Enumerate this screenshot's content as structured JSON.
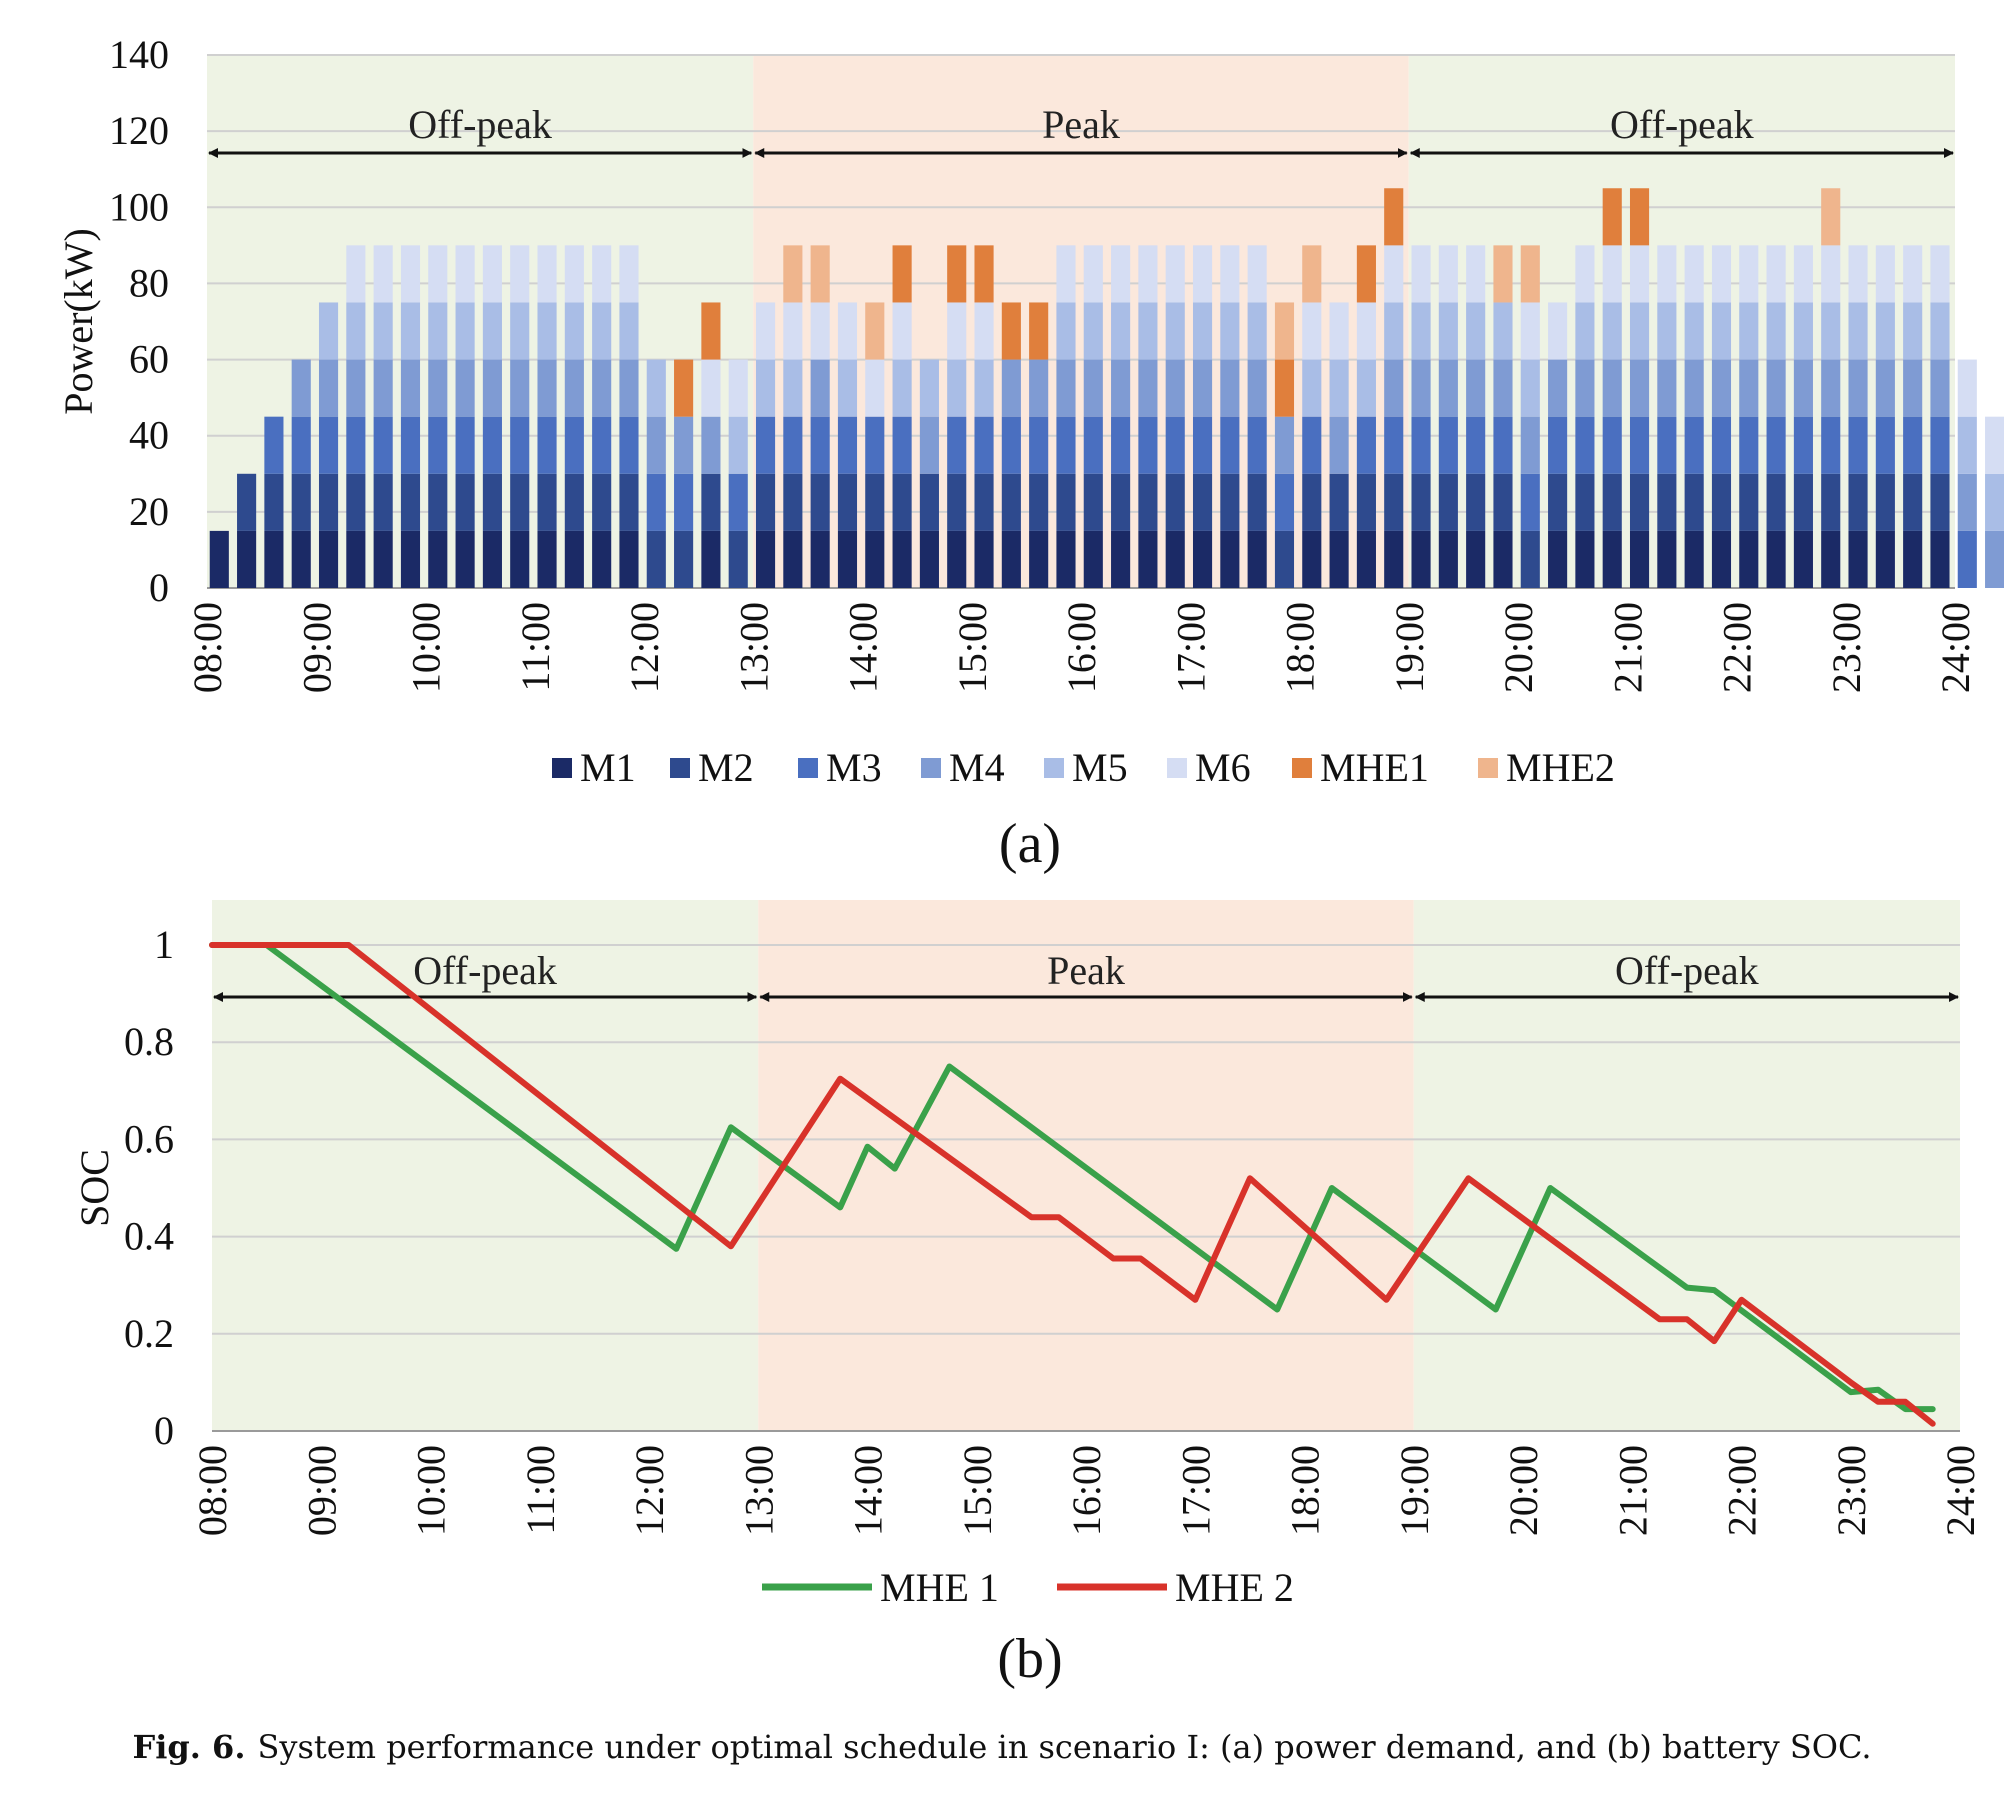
{
  "chart_data": [
    {
      "panel_label": "(a)",
      "type": "bar",
      "stacked": true,
      "ylabel": "Power(kW)",
      "ylim": [
        0,
        140
      ],
      "yticks": [
        "0",
        "20",
        "40",
        "60",
        "80",
        "100",
        "120",
        "140"
      ],
      "xticks": [
        "08:00",
        "09:00",
        "10:00",
        "11:00",
        "12:00",
        "13:00",
        "14:00",
        "15:00",
        "16:00",
        "17:00",
        "18:00",
        "19:00",
        "20:00",
        "21:00",
        "22:00",
        "23:00",
        "24:00"
      ],
      "periods": [
        {
          "label": "Off-peak",
          "start": "08:00",
          "end": "13:00",
          "color": "#eef3e4"
        },
        {
          "label": "Peak",
          "start": "13:00",
          "end": "19:00",
          "color": "#fbe8dc"
        },
        {
          "label": "Off-peak",
          "start": "19:00",
          "end": "24:00",
          "color": "#eef3e4"
        }
      ],
      "series": [
        {
          "name": "M1",
          "color": "#1b2a66"
        },
        {
          "name": "M2",
          "color": "#2e4a8e"
        },
        {
          "name": "M3",
          "color": "#4a6fc0"
        },
        {
          "name": "M4",
          "color": "#7f9bd3"
        },
        {
          "name": "M5",
          "color": "#a9bde6"
        },
        {
          "name": "M6",
          "color": "#d5ddf3"
        },
        {
          "name": "MHE1",
          "color": "#e07f3c"
        },
        {
          "name": "MHE2",
          "color": "#efb58d"
        }
      ],
      "bar_interval_minutes": 15,
      "bars": [
        [
          1,
          0,
          0,
          0,
          0,
          0,
          0,
          0
        ],
        [
          1,
          1,
          0,
          0,
          0,
          0,
          0,
          0
        ],
        [
          1,
          1,
          1,
          0,
          0,
          0,
          0,
          0
        ],
        [
          1,
          1,
          1,
          1,
          0,
          0,
          0,
          0
        ],
        [
          1,
          1,
          1,
          1,
          1,
          0,
          0,
          0
        ],
        [
          1,
          1,
          1,
          1,
          1,
          1,
          0,
          0
        ],
        [
          1,
          1,
          1,
          1,
          1,
          1,
          0,
          0
        ],
        [
          1,
          1,
          1,
          1,
          1,
          1,
          0,
          0
        ],
        [
          1,
          1,
          1,
          1,
          1,
          1,
          0,
          0
        ],
        [
          1,
          1,
          1,
          1,
          1,
          1,
          0,
          0
        ],
        [
          1,
          1,
          1,
          1,
          1,
          1,
          0,
          0
        ],
        [
          1,
          1,
          1,
          1,
          1,
          1,
          0,
          0
        ],
        [
          1,
          1,
          1,
          1,
          1,
          1,
          0,
          0
        ],
        [
          1,
          1,
          1,
          1,
          1,
          1,
          0,
          0
        ],
        [
          1,
          1,
          1,
          1,
          1,
          1,
          0,
          0
        ],
        [
          1,
          1,
          1,
          1,
          1,
          1,
          0,
          0
        ],
        [
          0,
          1,
          1,
          1,
          1,
          0,
          0,
          0
        ],
        [
          0,
          1,
          1,
          1,
          0,
          0,
          1,
          0
        ],
        [
          1,
          1,
          0,
          1,
          0,
          1,
          1,
          0
        ],
        [
          0,
          1,
          1,
          0,
          1,
          1,
          0,
          0
        ],
        [
          1,
          1,
          1,
          0,
          1,
          1,
          0,
          0
        ],
        [
          1,
          1,
          1,
          0,
          1,
          1,
          0,
          1
        ],
        [
          1,
          1,
          1,
          1,
          0,
          1,
          0,
          1
        ],
        [
          1,
          1,
          1,
          0,
          1,
          1,
          0,
          0
        ],
        [
          1,
          1,
          1,
          0,
          0,
          1,
          0,
          1
        ],
        [
          1,
          1,
          1,
          0,
          1,
          1,
          1,
          0
        ],
        [
          1,
          1,
          0,
          1,
          1,
          0,
          0,
          0
        ],
        [
          1,
          1,
          1,
          0,
          1,
          1,
          1,
          0
        ],
        [
          1,
          1,
          1,
          0,
          1,
          1,
          1,
          0
        ],
        [
          1,
          1,
          1,
          1,
          0,
          0,
          1,
          0
        ],
        [
          1,
          1,
          1,
          1,
          0,
          0,
          1,
          0
        ],
        [
          1,
          1,
          1,
          1,
          1,
          1,
          0,
          0
        ],
        [
          1,
          1,
          1,
          1,
          1,
          1,
          0,
          0
        ],
        [
          1,
          1,
          1,
          1,
          1,
          1,
          0,
          0
        ],
        [
          1,
          1,
          1,
          1,
          1,
          1,
          0,
          0
        ],
        [
          1,
          1,
          1,
          1,
          1,
          1,
          0,
          0
        ],
        [
          1,
          1,
          1,
          1,
          1,
          1,
          0,
          0
        ],
        [
          1,
          1,
          1,
          1,
          1,
          1,
          0,
          0
        ],
        [
          1,
          1,
          1,
          1,
          1,
          1,
          0,
          0
        ],
        [
          0,
          1,
          1,
          1,
          0,
          0,
          1,
          1
        ],
        [
          1,
          1,
          1,
          0,
          1,
          1,
          0,
          1
        ],
        [
          1,
          1,
          0,
          1,
          1,
          1,
          0,
          0
        ],
        [
          1,
          1,
          1,
          0,
          1,
          1,
          1,
          0
        ],
        [
          1,
          1,
          1,
          1,
          1,
          1,
          1,
          0
        ],
        [
          1,
          1,
          1,
          1,
          1,
          1,
          0,
          0
        ],
        [
          1,
          1,
          1,
          1,
          1,
          1,
          0,
          0
        ],
        [
          1,
          1,
          1,
          1,
          1,
          1,
          0,
          0
        ],
        [
          1,
          1,
          1,
          1,
          1,
          0,
          0,
          1
        ],
        [
          0,
          1,
          1,
          1,
          1,
          1,
          0,
          1
        ],
        [
          1,
          1,
          1,
          1,
          0,
          1,
          0,
          0
        ],
        [
          1,
          1,
          1,
          1,
          1,
          1,
          0,
          0
        ],
        [
          1,
          1,
          1,
          1,
          1,
          1,
          1,
          0
        ],
        [
          1,
          1,
          1,
          1,
          1,
          1,
          1,
          0
        ],
        [
          1,
          1,
          1,
          1,
          1,
          1,
          0,
          0
        ],
        [
          1,
          1,
          1,
          1,
          1,
          1,
          0,
          0
        ],
        [
          1,
          1,
          1,
          1,
          1,
          1,
          0,
          0
        ],
        [
          1,
          1,
          1,
          1,
          1,
          1,
          0,
          0
        ],
        [
          1,
          1,
          1,
          1,
          1,
          1,
          0,
          0
        ],
        [
          1,
          1,
          1,
          1,
          1,
          1,
          0,
          0
        ],
        [
          1,
          1,
          1,
          1,
          1,
          1,
          0,
          1
        ],
        [
          1,
          1,
          1,
          1,
          1,
          1,
          0,
          0
        ],
        [
          1,
          1,
          1,
          1,
          1,
          1,
          0,
          0
        ],
        [
          1,
          1,
          1,
          1,
          1,
          1,
          0,
          0
        ],
        [
          1,
          1,
          1,
          1,
          1,
          1,
          0,
          0
        ],
        [
          0,
          0,
          1,
          1,
          1,
          1,
          0,
          0
        ],
        [
          0,
          0,
          0,
          1,
          1,
          1,
          0,
          0
        ],
        [
          0,
          0,
          0,
          0,
          1,
          1,
          0,
          0
        ],
        [
          0,
          0,
          0,
          0,
          0,
          1,
          0,
          0
        ]
      ]
    },
    {
      "panel_label": "(b)",
      "type": "line",
      "ylabel": "SOC",
      "ylim": [
        0,
        1
      ],
      "yticks": [
        "0",
        "0.2",
        "0.4",
        "0.6",
        "0.8",
        "1"
      ],
      "xticks": [
        "08:00",
        "09:00",
        "10:00",
        "11:00",
        "12:00",
        "13:00",
        "14:00",
        "15:00",
        "16:00",
        "17:00",
        "18:00",
        "19:00",
        "20:00",
        "21:00",
        "22:00",
        "23:00",
        "24:00"
      ],
      "periods": [
        {
          "label": "Off-peak",
          "start": "08:00",
          "end": "13:00",
          "color": "#eef3e4"
        },
        {
          "label": "Peak",
          "start": "13:00",
          "end": "19:00",
          "color": "#fbe8dc"
        },
        {
          "label": "Off-peak",
          "start": "19:00",
          "end": "24:00",
          "color": "#eef3e4"
        }
      ],
      "series": [
        {
          "name": "MHE 1",
          "color": "#3aa14a",
          "points": [
            [
              "08:00",
              1.0
            ],
            [
              "08:30",
              1.0
            ],
            [
              "12:15",
              0.375
            ],
            [
              "12:45",
              0.625
            ],
            [
              "13:45",
              0.46
            ],
            [
              "14:00",
              0.585
            ],
            [
              "14:15",
              0.54
            ],
            [
              "14:45",
              0.75
            ],
            [
              "17:45",
              0.25
            ],
            [
              "18:15",
              0.5
            ],
            [
              "19:45",
              0.25
            ],
            [
              "20:15",
              0.5
            ],
            [
              "21:30",
              0.295
            ],
            [
              "21:45",
              0.29
            ],
            [
              "23:00",
              0.08
            ],
            [
              "23:15",
              0.085
            ],
            [
              "23:30",
              0.045
            ],
            [
              "23:45",
              0.045
            ]
          ]
        },
        {
          "name": "MHE 2",
          "color": "#d8322a",
          "points": [
            [
              "08:00",
              1.0
            ],
            [
              "09:15",
              1.0
            ],
            [
              "12:45",
              0.38
            ],
            [
              "13:45",
              0.725
            ],
            [
              "15:30",
              0.44
            ],
            [
              "15:45",
              0.44
            ],
            [
              "16:15",
              0.355
            ],
            [
              "16:30",
              0.355
            ],
            [
              "17:00",
              0.27
            ],
            [
              "17:30",
              0.52
            ],
            [
              "18:45",
              0.27
            ],
            [
              "19:30",
              0.52
            ],
            [
              "21:15",
              0.23
            ],
            [
              "21:30",
              0.23
            ],
            [
              "21:45",
              0.185
            ],
            [
              "22:00",
              0.27
            ],
            [
              "23:00",
              0.1
            ],
            [
              "23:15",
              0.06
            ],
            [
              "23:30",
              0.06
            ],
            [
              "23:45",
              0.015
            ]
          ]
        }
      ]
    }
  ],
  "caption": {
    "label": "Fig. 6.",
    "text": "System performance under optimal schedule in scenario I: (a) power demand, and (b) battery SOC."
  }
}
